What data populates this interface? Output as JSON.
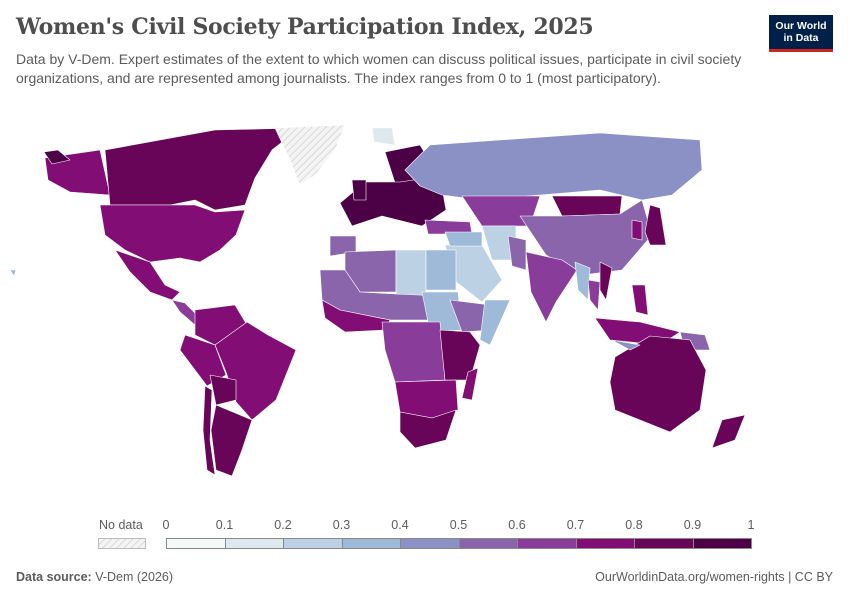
{
  "header": {
    "title": "Women's Civil Society Participation Index, 2025",
    "subtitle": "Data by V-Dem. Expert estimates of the extent to which women can discuss political issues, participate in civil society organizations, and are represented among journalists. The index ranges from 0 to 1 (most participatory).",
    "logo_line1": "Our World",
    "logo_line2": "in Data"
  },
  "legend": {
    "no_data_label": "No data",
    "ticks": [
      "0",
      "0.1",
      "0.2",
      "0.3",
      "0.4",
      "0.5",
      "0.6",
      "0.7",
      "0.8",
      "0.9",
      "1"
    ],
    "colors": [
      "#f4f9fa",
      "#dde8ef",
      "#bdd1e4",
      "#9fbad9",
      "#8b91c5",
      "#8b65ac",
      "#8a3c9a",
      "#820d75",
      "#680559",
      "#4c0045"
    ],
    "no_data_color": "#e6e6e6"
  },
  "map_data": {
    "type": "choropleth",
    "scale": [
      0,
      1
    ],
    "region_values": [
      0.72,
      0.85,
      0.72,
      0.74,
      0.62,
      null,
      0.78,
      0.76,
      0.72,
      0.86,
      0.82,
      0.87,
      0.92,
      0.93,
      0.92,
      0.62,
      0.45,
      0.62,
      0.8,
      0.52,
      0.2,
      0.25,
      0.35,
      0.6,
      0.5,
      0.32,
      0.62,
      0.82,
      0.8,
      0.75,
      0.75,
      0.72,
      0.55,
      0.85,
      0.86,
      0.52,
      0.5,
      0.27,
      0.35,
      0.55,
      0.36,
      0.76,
      0.66,
      0.5,
      0.3,
      0.86,
      0.76,
      0.8,
      0.75,
      0.3,
      0.92,
      0.12,
      0.45
    ]
  },
  "footer": {
    "source_label": "Data source:",
    "source": "V-Dem (2026)",
    "url": "OurWorldinData.org/women-rights | CC BY"
  }
}
